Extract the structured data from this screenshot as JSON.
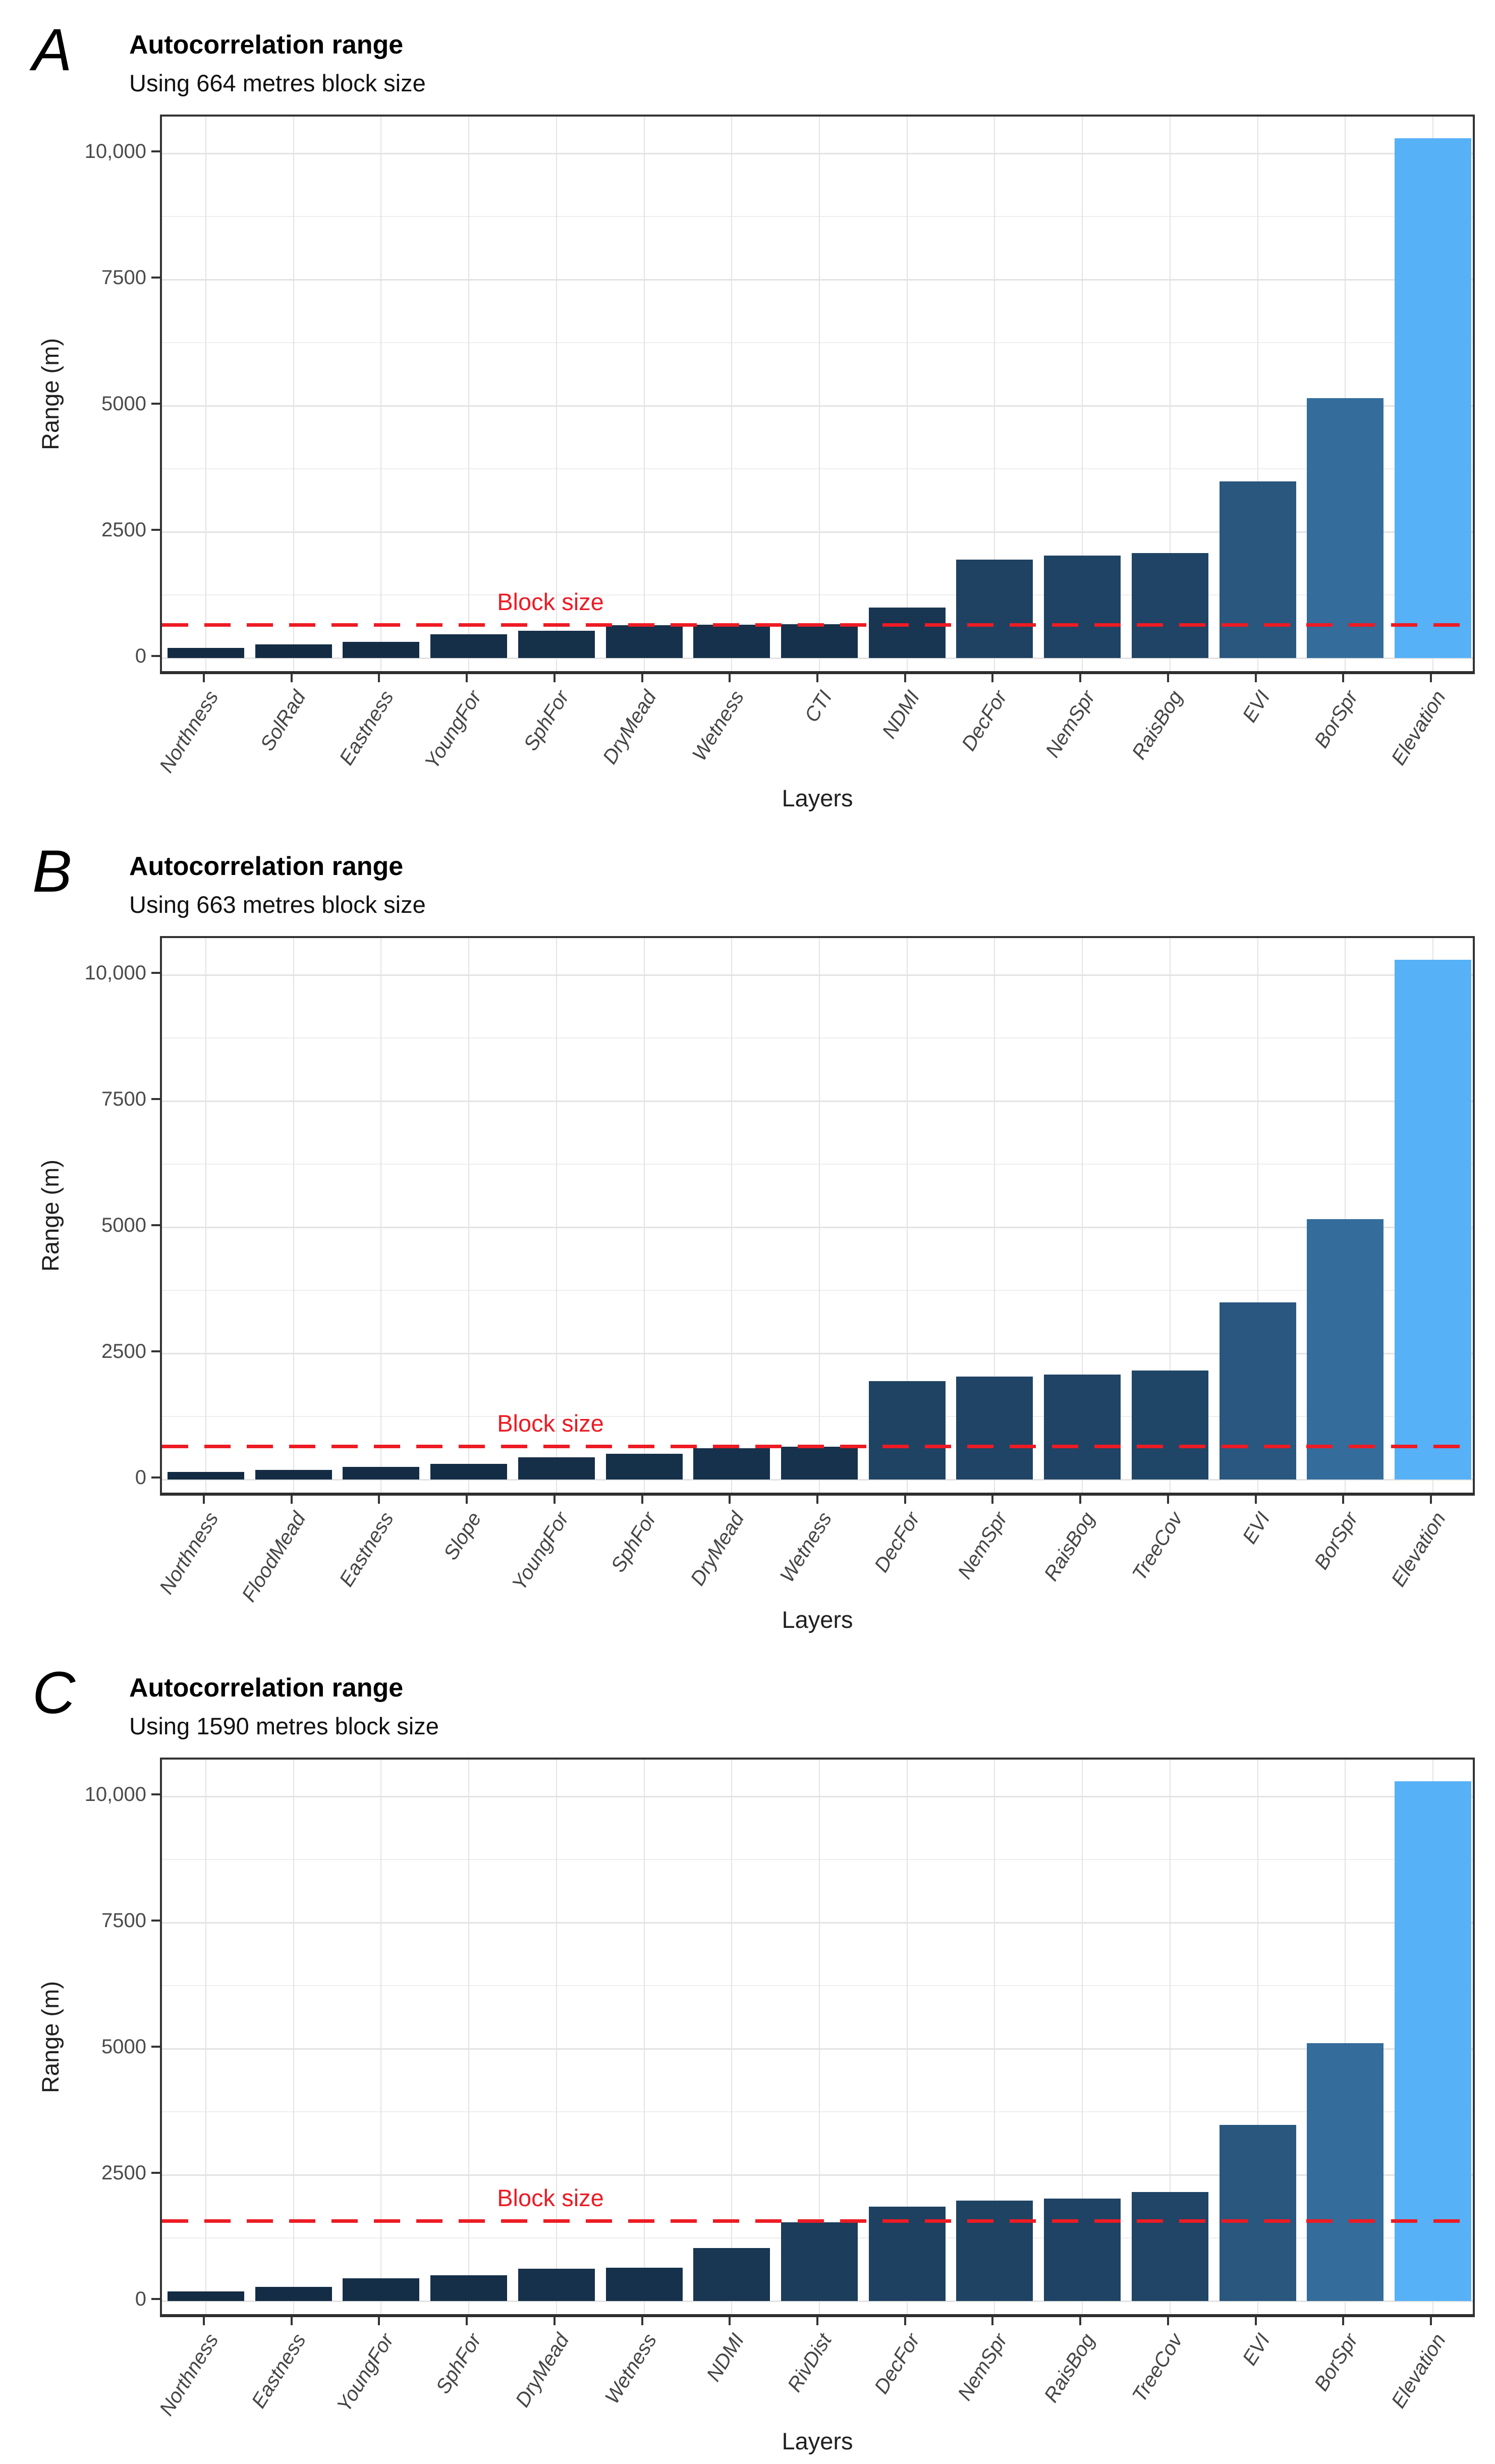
{
  "figure": {
    "xlabel": "Layers",
    "ylabel": "Range (m)",
    "block_label": "Block size",
    "ytick_labels": [
      "0",
      "2500",
      "5000",
      "7500",
      "10,000"
    ],
    "ytick_values": [
      0,
      2500,
      5000,
      7500,
      10000
    ]
  },
  "style": {
    "bar_gradient_low": "#132B43",
    "bar_gradient_high": "#56B1F7",
    "block_line_color": "#ED1B24",
    "block_label_color": "#ED1B24",
    "grid_major": "#e3e3e3",
    "grid_minor": "#eeeeee",
    "axis_color": "#333333",
    "tick_text_color": "#4b4b4b"
  },
  "chart_data": [
    {
      "type": "bar",
      "panel_letter": "A",
      "title": "Autocorrelation range",
      "subtitle": "Using 664 metres block size",
      "block_size": 664,
      "xlabel": "Layers",
      "ylabel": "Range (m)",
      "ylim": [
        0,
        10730
      ],
      "yticks_major": [
        0,
        2500,
        5000,
        7500,
        10000
      ],
      "yticks_minor": [
        1250,
        3750,
        6250,
        8750
      ],
      "grid": true,
      "legend": "none",
      "categories": [
        "Northness",
        "SolRad",
        "Eastness",
        "YoungFor",
        "SphFor",
        "DryMead",
        "Wetness",
        "CTI",
        "NDMI",
        "DecFor",
        "NemSpr",
        "RaisBog",
        "EVI",
        "BorSpr",
        "Elevation"
      ],
      "values": [
        200,
        270,
        320,
        470,
        540,
        650,
        660,
        670,
        1000,
        1950,
        2030,
        2080,
        3500,
        5150,
        10300
      ]
    },
    {
      "type": "bar",
      "panel_letter": "B",
      "title": "Autocorrelation range",
      "subtitle": "Using 663 metres block size",
      "block_size": 663,
      "xlabel": "Layers",
      "ylabel": "Range (m)",
      "ylim": [
        0,
        10730
      ],
      "yticks_major": [
        0,
        2500,
        5000,
        7500,
        10000
      ],
      "yticks_minor": [
        1250,
        3750,
        6250,
        8750
      ],
      "grid": true,
      "legend": "none",
      "categories": [
        "Northness",
        "FloodMead",
        "Eastness",
        "Slope",
        "YoungFor",
        "SphFor",
        "DryMead",
        "Wetness",
        "DecFor",
        "NemSpr",
        "RaisBog",
        "TreeCov",
        "EVI",
        "BorSpr",
        "Elevation"
      ],
      "values": [
        150,
        190,
        250,
        310,
        440,
        510,
        620,
        655,
        1950,
        2040,
        2080,
        2160,
        3510,
        5160,
        10300
      ]
    },
    {
      "type": "bar",
      "panel_letter": "C",
      "title": "Autocorrelation range",
      "subtitle": "Using 1590 metres block size",
      "block_size": 1590,
      "xlabel": "Layers",
      "ylabel": "Range (m)",
      "ylim": [
        0,
        10730
      ],
      "yticks_major": [
        0,
        2500,
        5000,
        7500,
        10000
      ],
      "yticks_minor": [
        1250,
        3750,
        6250,
        8750
      ],
      "grid": true,
      "legend": "none",
      "categories": [
        "Northness",
        "Eastness",
        "YoungFor",
        "SphFor",
        "DryMead",
        "Wetness",
        "NDMI",
        "RivDist",
        "DecFor",
        "NemSpr",
        "RaisBog",
        "TreeCov",
        "EVI",
        "BorSpr",
        "Elevation"
      ],
      "values": [
        190,
        280,
        450,
        510,
        640,
        660,
        1050,
        1560,
        1870,
        1990,
        2030,
        2160,
        3490,
        5110,
        10300
      ]
    }
  ]
}
